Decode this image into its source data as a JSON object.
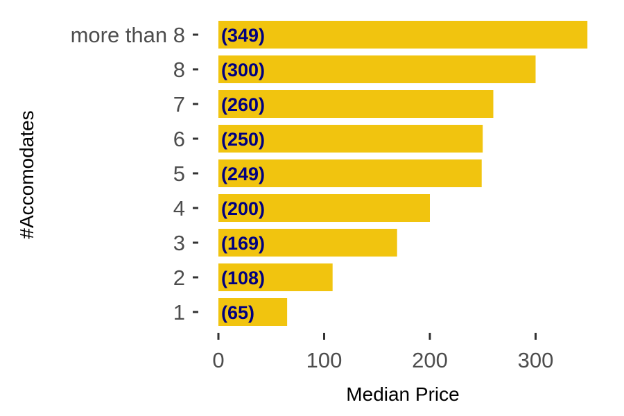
{
  "chart_data": {
    "type": "bar",
    "orientation": "horizontal",
    "categories": [
      "1",
      "2",
      "3",
      "4",
      "5",
      "6",
      "7",
      "8",
      "more than 8"
    ],
    "values": [
      65,
      108,
      169,
      200,
      249,
      250,
      260,
      300,
      349
    ],
    "data_labels": [
      "(65)",
      "(108)",
      "(169)",
      "(200)",
      "(249)",
      "(250)",
      "(260)",
      "(300)",
      "(349)"
    ],
    "xlabel": "Median Price",
    "ylabel": "#Accomodates",
    "x_ticks": [
      0,
      100,
      200,
      300
    ],
    "xlim": [
      0,
      360
    ],
    "grid": false,
    "legend": "none",
    "colors": {
      "bar": "#F1C40F",
      "label": "#000080",
      "tick_text": "#4d4d4d",
      "axis_title": "#000000"
    }
  }
}
